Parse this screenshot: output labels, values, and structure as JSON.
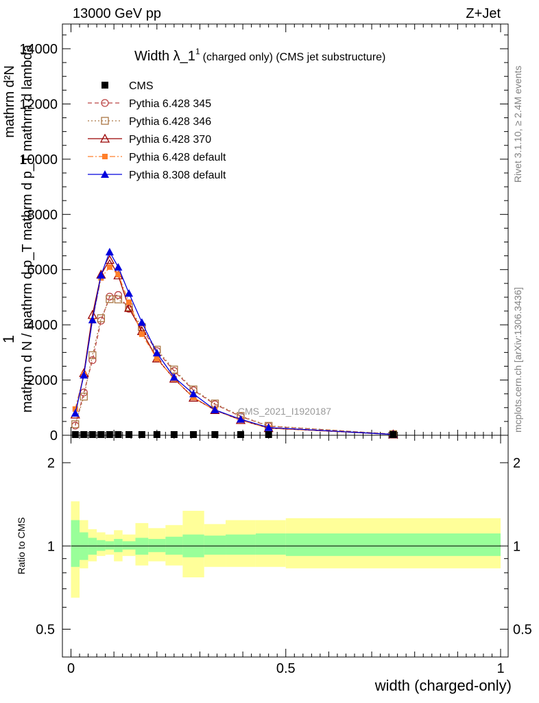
{
  "header": {
    "left": "13000 GeV pp",
    "right": "Z+Jet"
  },
  "main_plot": {
    "title": "Width λ_1",
    "title_sup": "1",
    "title_small": "(charged only) (CMS jet substructure)",
    "ylabel_top": "1",
    "ylabel_num": "mathrm d²N",
    "ylabel_den": "mathrm d N / mathrm d p_T mathrm d p_T mathrm d lambda",
    "analysis_watermark": "CMS_2021_I1920187",
    "side_text_top": "Rivet 3.1.10, ≥ 2.4M events",
    "side_text_bottom": "mcplots.cern.ch [arXiv:1306.3436]",
    "y_tick_labels": [
      "0",
      "2000",
      "4000",
      "6000",
      "8000",
      "10000",
      "12000",
      "14000"
    ]
  },
  "ratio_plot": {
    "ylabel": "Ratio to CMS",
    "y_tick_labels": [
      "0.5",
      "1",
      "2"
    ],
    "xlabel": "width (charged-only)",
    "x_tick_labels": [
      "0",
      "0.5",
      "1"
    ],
    "band_colors": {
      "inner": "#99ff99",
      "outer": "#ffff99"
    }
  },
  "legend": [
    {
      "label": "CMS",
      "color": "#000000",
      "marker": "square-filled",
      "line": "none"
    },
    {
      "label": "Pythia 6.428 345",
      "color": "#bb4444",
      "marker": "circle-open",
      "line": "dashed"
    },
    {
      "label": "Pythia 6.428 346",
      "color": "#aa7744",
      "marker": "square-open",
      "line": "dotted"
    },
    {
      "label": "Pythia 6.428 370",
      "color": "#990000",
      "marker": "triangle-open",
      "line": "solid"
    },
    {
      "label": "Pythia 6.428 default",
      "color": "#ff7f2a",
      "marker": "square-filled-small",
      "line": "dashdot"
    },
    {
      "label": "Pythia 8.308 default",
      "color": "#0000dd",
      "marker": "triangle-filled",
      "line": "solid"
    }
  ],
  "chart_data": {
    "type": "line",
    "xlim": [
      0,
      1
    ],
    "ylim": [
      0,
      14000
    ],
    "ratio_ylim": [
      0.5,
      2.2
    ],
    "ratio_scale": "log",
    "x": [
      0.01,
      0.03,
      0.05,
      0.07,
      0.09,
      0.11,
      0.135,
      0.165,
      0.2,
      0.24,
      0.285,
      0.335,
      0.395,
      0.46,
      0.75
    ],
    "series": [
      {
        "name": "CMS",
        "values": [
          0,
          0,
          0,
          0,
          0,
          0,
          0,
          0,
          0,
          0,
          0,
          0,
          0,
          0,
          0
        ]
      },
      {
        "name": "Pythia 6.428 345",
        "values": [
          350,
          1550,
          2720,
          4150,
          5020,
          5080,
          4580,
          3850,
          3050,
          2330,
          1630,
          1120,
          680,
          330,
          40
        ]
      },
      {
        "name": "Pythia 6.428 346",
        "values": [
          400,
          1400,
          2900,
          4240,
          4930,
          4920,
          4640,
          3920,
          3100,
          2380,
          1660,
          1150,
          700,
          340,
          40
        ]
      },
      {
        "name": "Pythia 6.428 370",
        "values": [
          750,
          2250,
          4360,
          5820,
          6350,
          5790,
          4610,
          3770,
          2780,
          2050,
          1360,
          910,
          550,
          260,
          30
        ]
      },
      {
        "name": "Pythia 6.428 default",
        "values": [
          950,
          2200,
          4150,
          5700,
          6090,
          5820,
          4820,
          3660,
          2780,
          2050,
          1370,
          910,
          550,
          260,
          30
        ]
      },
      {
        "name": "Pythia 8.308 default",
        "values": [
          800,
          2180,
          4180,
          5800,
          6640,
          6090,
          5140,
          4090,
          2980,
          2100,
          1500,
          920,
          580,
          280,
          30
        ]
      }
    ],
    "ratio_bands": {
      "edges": [
        0,
        0.02,
        0.04,
        0.06,
        0.08,
        0.1,
        0.12,
        0.15,
        0.18,
        0.22,
        0.26,
        0.31,
        0.36,
        0.43,
        0.5,
        1.0
      ],
      "inner_lo": [
        0.84,
        0.89,
        0.93,
        0.96,
        0.97,
        0.95,
        0.97,
        0.93,
        0.95,
        0.93,
        0.91,
        0.93,
        0.93,
        0.93,
        0.92
      ],
      "inner_hi": [
        1.24,
        1.12,
        1.07,
        1.05,
        1.04,
        1.06,
        1.04,
        1.07,
        1.06,
        1.08,
        1.1,
        1.09,
        1.1,
        1.11,
        1.11
      ],
      "outer_lo": [
        0.65,
        0.83,
        0.88,
        0.92,
        0.93,
        0.88,
        0.92,
        0.85,
        0.88,
        0.85,
        0.77,
        0.84,
        0.84,
        0.84,
        0.83
      ],
      "outer_hi": [
        1.45,
        1.24,
        1.15,
        1.12,
        1.1,
        1.14,
        1.1,
        1.21,
        1.16,
        1.19,
        1.34,
        1.2,
        1.24,
        1.24,
        1.26
      ]
    }
  }
}
